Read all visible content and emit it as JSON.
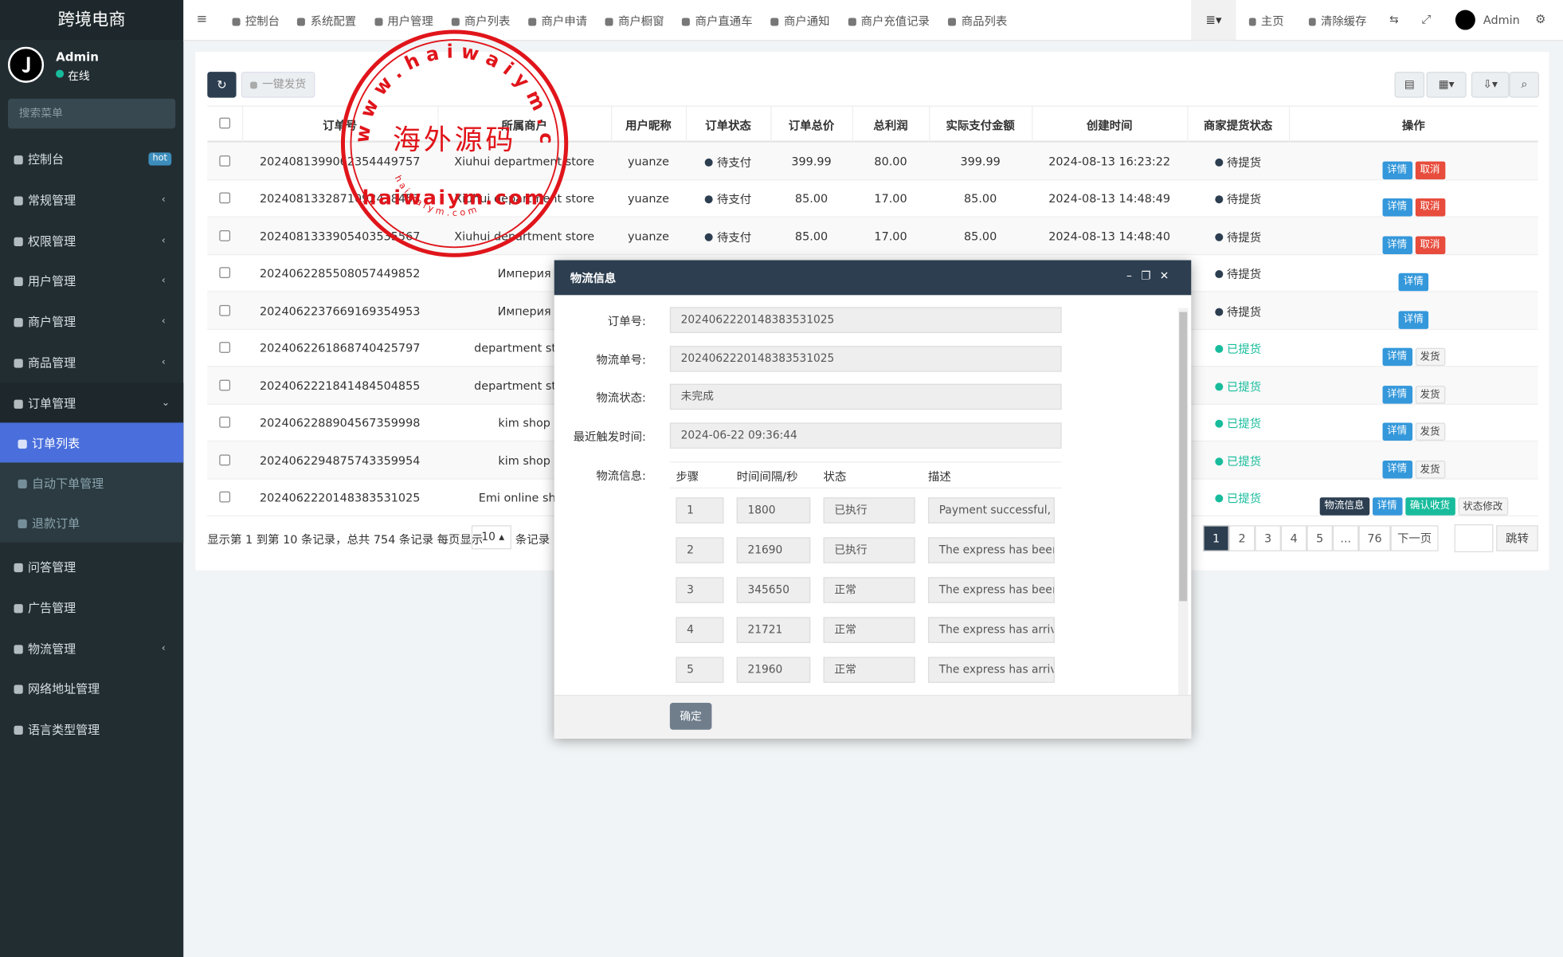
{
  "sidebar": {
    "brand": "跨境电商",
    "user": "Admin",
    "status": "在线",
    "search_placeholder": "搜索菜单",
    "menu": [
      {
        "label": "控制台",
        "badge": "hot"
      },
      {
        "label": "常规管理"
      },
      {
        "label": "权限管理"
      },
      {
        "label": "用户管理"
      },
      {
        "label": "商户管理"
      },
      {
        "label": "商品管理"
      },
      {
        "label": "订单管理"
      }
    ],
    "submenu": [
      "订单列表",
      "自动下单管理",
      "退款订单"
    ],
    "menu_after": [
      "问答管理",
      "广告管理",
      "物流管理",
      "网络地址管理",
      "语言类型管理"
    ]
  },
  "topnav": {
    "items": [
      "控制台",
      "系统配置",
      "用户管理",
      "商户列表",
      "商户申请",
      "商户橱窗",
      "商户直通车",
      "商户通知",
      "商户充值记录",
      "商品列表"
    ],
    "right": [
      "主页",
      "清除缓存",
      "Admin"
    ]
  },
  "toolbar": {
    "bulk_ship": "一键发货"
  },
  "table": {
    "headers": [
      "订单号",
      "所属商户",
      "用户昵称",
      "订单状态",
      "订单总价",
      "总利润",
      "实际支付金额",
      "创建时间",
      "商家提货状态",
      "操作"
    ],
    "rows": [
      [
        "2024081399062354449757",
        "Xiuhui department store",
        "yuanze",
        "待支付",
        "399.99",
        "80.00",
        "399.99",
        "2024-08-13 16:23:22",
        "待提货",
        [
          "详情",
          "取消"
        ]
      ],
      [
        "2024081332871092438453",
        "Xiuhui department store",
        "yuanze",
        "待支付",
        "85.00",
        "17.00",
        "85.00",
        "2024-08-13 14:48:49",
        "待提货",
        [
          "详情",
          "取消"
        ]
      ],
      [
        "2024081333905403535567",
        "Xiuhui department store",
        "yuanze",
        "待支付",
        "85.00",
        "17.00",
        "85.00",
        "2024-08-13 14:48:40",
        "待提货",
        [
          "详情",
          "取消"
        ]
      ],
      [
        "2024062285508057449852",
        "Империя",
        null,
        null,
        null,
        null,
        null,
        null,
        "待提货",
        [
          "详情"
        ]
      ],
      [
        "2024062237669169354953",
        "Империя",
        null,
        null,
        null,
        null,
        null,
        null,
        "待提货",
        [
          "详情"
        ]
      ],
      [
        "2024062261868740425797",
        "department store",
        null,
        null,
        null,
        null,
        null,
        null,
        "已提货",
        [
          "详情",
          "发货"
        ]
      ],
      [
        "2024062221841484504855",
        "department store",
        null,
        null,
        null,
        null,
        null,
        null,
        "已提货",
        [
          "详情",
          "发货"
        ]
      ],
      [
        "2024062288904567359998",
        "kim shop",
        null,
        null,
        null,
        null,
        null,
        null,
        "已提货",
        [
          "详情",
          "发货"
        ]
      ],
      [
        "2024062294875743359954",
        "kim shop",
        null,
        null,
        null,
        null,
        null,
        null,
        "已提货",
        [
          "详情",
          "发货"
        ]
      ],
      [
        "2024062220148383531025",
        "Emi online shop",
        null,
        null,
        null,
        null,
        null,
        null,
        "已提货",
        [
          "物流信息",
          "详情",
          "确认收货",
          "状态修改"
        ]
      ]
    ]
  },
  "pagination": {
    "summary": "显示第 1 到第 10 条记录，总共 754 条记录 每页显示",
    "page_size": "10",
    "suffix": "条记录",
    "pages": [
      "1",
      "2",
      "3",
      "4",
      "5",
      "...",
      "76"
    ],
    "next": "下一页",
    "jump": "跳转"
  },
  "modal": {
    "title": "物流信息",
    "fields": [
      {
        "label": "订单号:",
        "value": "2024062220148383531025"
      },
      {
        "label": "物流单号:",
        "value": "2024062220148383531025"
      },
      {
        "label": "物流状态:",
        "value": "未完成"
      },
      {
        "label": "最近触发时间:",
        "value": "2024-06-22 09:36:44"
      }
    ],
    "steps_label": "物流信息:",
    "step_headers": [
      "步骤",
      "时间间隔/秒",
      "状态",
      "描述"
    ],
    "steps": [
      [
        "1",
        "1800",
        "已执行",
        "Payment successful, w"
      ],
      [
        "2",
        "21690",
        "已执行",
        "The express has been"
      ],
      [
        "3",
        "345650",
        "正常",
        "The express has been"
      ],
      [
        "4",
        "21721",
        "正常",
        "The express has arrive"
      ],
      [
        "5",
        "21960",
        "正常",
        "The express has arrive"
      ]
    ],
    "confirm": "确定"
  },
  "watermark": {
    "ring": "www.haiwaiym.com",
    "title": "海外源码",
    "domain": "haiwaiym.com",
    "small": "haiwaiym.com"
  }
}
